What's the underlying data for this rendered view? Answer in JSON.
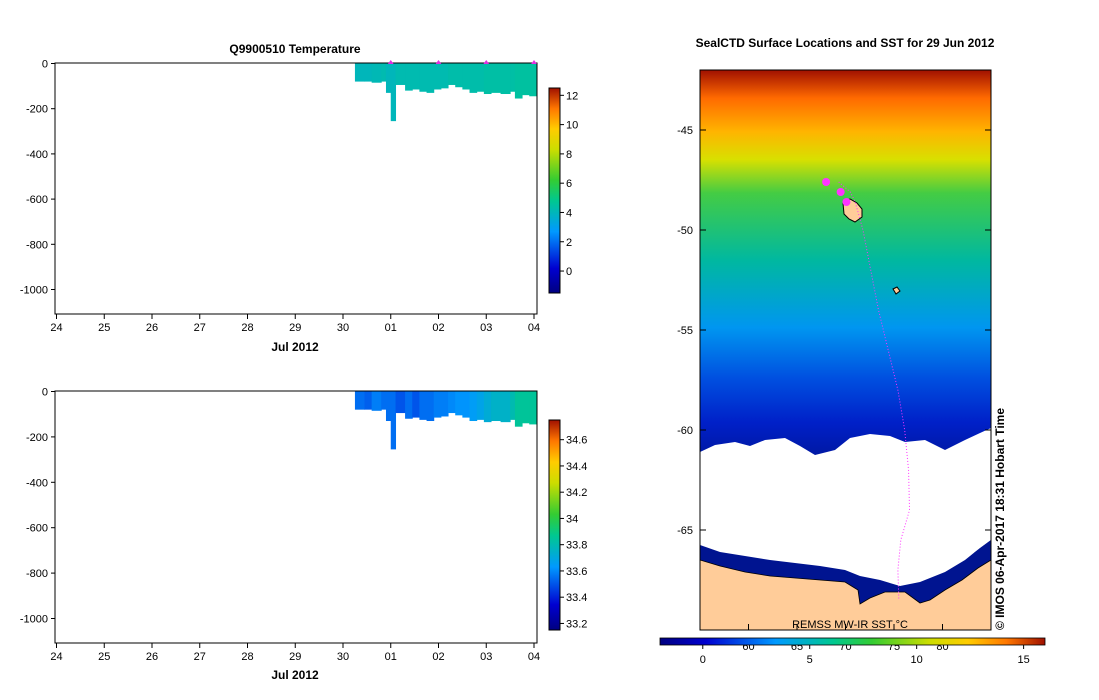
{
  "left_panels": {
    "x_ticks": [
      "24",
      "25",
      "26",
      "27",
      "28",
      "29",
      "30",
      "01",
      "02",
      "03",
      "04"
    ],
    "x_label": "Jul 2012",
    "depth_ticks": [
      "0",
      "-200",
      "-400",
      "-600",
      "-800",
      "-1000"
    ]
  },
  "chart_data": [
    {
      "type": "heatmap",
      "title": "Q9900510  Temperature",
      "xlabel": "Jul 2012",
      "ylabel": "",
      "ylim": [
        -1100,
        0
      ],
      "colorbar": {
        "min": -1.5,
        "max": 12.5,
        "ticks": [
          "0",
          "2",
          "4",
          "6",
          "8",
          "10",
          "12"
        ]
      },
      "profiles": [
        {
          "day": 30.25,
          "depth": -80,
          "value": 4.0
        },
        {
          "day": 30.45,
          "depth": -80,
          "value": 4.0
        },
        {
          "day": 30.6,
          "depth": -85,
          "value": 4.1
        },
        {
          "day": 30.8,
          "depth": -80,
          "value": 4.2
        },
        {
          "day": 30.9,
          "depth": -130,
          "value": 4.0
        },
        {
          "day": 31.0,
          "depth": -255,
          "value": 4.0
        },
        {
          "day": 31.1,
          "depth": -95,
          "value": 4.2
        },
        {
          "day": 31.3,
          "depth": -120,
          "value": 4.2
        },
        {
          "day": 31.45,
          "depth": -115,
          "value": 4.2
        },
        {
          "day": 31.6,
          "depth": -125,
          "value": 4.2
        },
        {
          "day": 31.75,
          "depth": -130,
          "value": 4.2
        },
        {
          "day": 31.9,
          "depth": -115,
          "value": 4.2
        },
        {
          "day": 32.05,
          "depth": -110,
          "value": 4.2
        },
        {
          "day": 32.2,
          "depth": -95,
          "value": 4.3
        },
        {
          "day": 32.35,
          "depth": -105,
          "value": 4.3
        },
        {
          "day": 32.5,
          "depth": -115,
          "value": 4.3
        },
        {
          "day": 32.65,
          "depth": -130,
          "value": 4.3
        },
        {
          "day": 32.8,
          "depth": -125,
          "value": 4.3
        },
        {
          "day": 32.95,
          "depth": -135,
          "value": 4.4
        },
        {
          "day": 33.1,
          "depth": -130,
          "value": 4.4
        },
        {
          "day": 33.3,
          "depth": -135,
          "value": 4.4
        },
        {
          "day": 33.5,
          "depth": -125,
          "value": 4.4
        },
        {
          "day": 33.6,
          "depth": -155,
          "value": 4.5
        },
        {
          "day": 33.75,
          "depth": -140,
          "value": 4.5
        },
        {
          "day": 33.9,
          "depth": -145,
          "value": 4.5
        }
      ],
      "markers_day": [
        31.0,
        32.0,
        33.0,
        34.0
      ]
    },
    {
      "type": "heatmap",
      "title": "",
      "xlabel": "Jul 2012",
      "ylabel": "",
      "ylim": [
        -1100,
        0
      ],
      "colorbar": {
        "min": 33.15,
        "max": 34.75,
        "ticks": [
          "33.2",
          "33.4",
          "33.6",
          "33.8",
          "34",
          "34.2",
          "34.4",
          "34.6"
        ]
      },
      "profiles": [
        {
          "day": 30.25,
          "depth": -80,
          "value": 33.55
        },
        {
          "day": 30.45,
          "depth": -80,
          "value": 33.52
        },
        {
          "day": 30.6,
          "depth": -85,
          "value": 33.58
        },
        {
          "day": 30.8,
          "depth": -80,
          "value": 33.55
        },
        {
          "day": 30.9,
          "depth": -130,
          "value": 33.55
        },
        {
          "day": 31.0,
          "depth": -255,
          "value": 33.55
        },
        {
          "day": 31.1,
          "depth": -95,
          "value": 33.5
        },
        {
          "day": 31.3,
          "depth": -120,
          "value": 33.55
        },
        {
          "day": 31.45,
          "depth": -115,
          "value": 33.5
        },
        {
          "day": 31.6,
          "depth": -125,
          "value": 33.55
        },
        {
          "day": 31.75,
          "depth": -130,
          "value": 33.55
        },
        {
          "day": 31.9,
          "depth": -115,
          "value": 33.58
        },
        {
          "day": 32.05,
          "depth": -110,
          "value": 33.58
        },
        {
          "day": 32.2,
          "depth": -95,
          "value": 33.6
        },
        {
          "day": 32.35,
          "depth": -105,
          "value": 33.62
        },
        {
          "day": 32.5,
          "depth": -115,
          "value": 33.62
        },
        {
          "day": 32.65,
          "depth": -130,
          "value": 33.65
        },
        {
          "day": 32.8,
          "depth": -125,
          "value": 33.68
        },
        {
          "day": 32.95,
          "depth": -135,
          "value": 33.72
        },
        {
          "day": 33.1,
          "depth": -130,
          "value": 33.75
        },
        {
          "day": 33.3,
          "depth": -135,
          "value": 33.75
        },
        {
          "day": 33.5,
          "depth": -125,
          "value": 33.8
        },
        {
          "day": 33.6,
          "depth": -155,
          "value": 33.85
        },
        {
          "day": 33.75,
          "depth": -140,
          "value": 33.85
        },
        {
          "day": 33.9,
          "depth": -145,
          "value": 33.85
        }
      ],
      "markers_day": []
    },
    {
      "type": "heatmap",
      "title": "SealCTD Surface Locations and SST for 29 Jun 2012",
      "xlabel": "",
      "ylabel": "",
      "x_ticks": [
        "60",
        "65",
        "70",
        "75",
        "80"
      ],
      "y_ticks": [
        "-45",
        "-50",
        "-55",
        "-60",
        "-65"
      ],
      "xlim": [
        55,
        85
      ],
      "ylim": [
        -70,
        -42
      ],
      "colorbar": {
        "min": -2,
        "max": 16,
        "ticks": [
          "0",
          "5",
          "10",
          "15"
        ]
      },
      "data_source": "REMSS MW-IR SST °C",
      "credit": "© IMOS 06-Apr-2017 18:31 Hobart Time",
      "track": [
        {
          "lon": 69.3,
          "lat": -47.6
        },
        {
          "lon": 70.5,
          "lat": -48.1
        },
        {
          "lon": 71.0,
          "lat": -48.6
        },
        {
          "lon": 71.8,
          "lat": -50.0
        },
        {
          "lon": 72.6,
          "lat": -52.0
        },
        {
          "lon": 73.4,
          "lat": -54.0
        },
        {
          "lon": 74.4,
          "lat": -56.0
        },
        {
          "lon": 75.4,
          "lat": -58.0
        },
        {
          "lon": 76.1,
          "lat": -60.0
        },
        {
          "lon": 76.5,
          "lat": -62.0
        },
        {
          "lon": 76.6,
          "lat": -64.0
        },
        {
          "lon": 75.7,
          "lat": -65.5
        },
        {
          "lon": 75.4,
          "lat": -67.0
        },
        {
          "lon": 75.5,
          "lat": -68.5
        }
      ],
      "surface_locations": [
        {
          "lon": 68.0,
          "lat": -47.6
        },
        {
          "lon": 69.5,
          "lat": -48.1
        },
        {
          "lon": 70.1,
          "lat": -48.6
        }
      ]
    }
  ]
}
